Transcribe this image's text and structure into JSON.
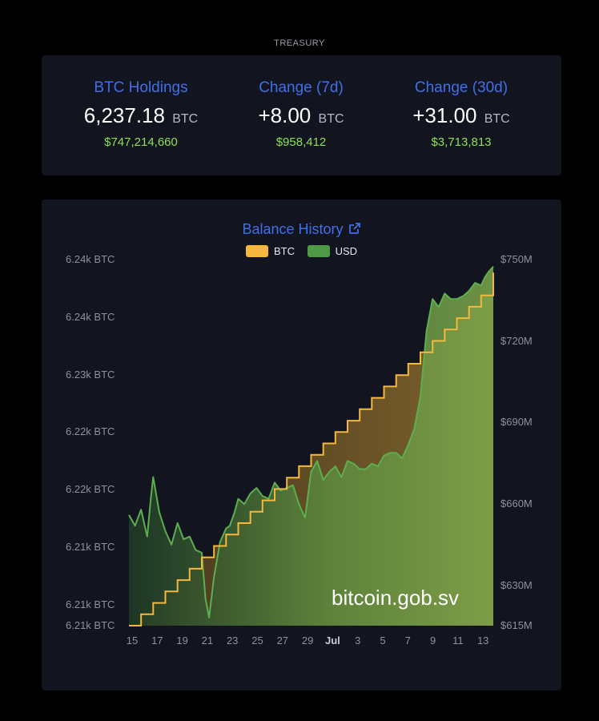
{
  "header": {
    "label": "TREASURY"
  },
  "stats": [
    {
      "title": "BTC Holdings",
      "value": "6,237.18",
      "unit": "BTC",
      "usd": "$747,214,660"
    },
    {
      "title": "Change (7d)",
      "value": "+8.00",
      "unit": "BTC",
      "usd": "$958,412"
    },
    {
      "title": "Change (30d)",
      "value": "+31.00",
      "unit": "BTC",
      "usd": "$3,713,813"
    }
  ],
  "colors": {
    "accent": "#3f6fe8",
    "usd_text": "#8be05a",
    "btc_series": "#f5b83d",
    "usd_series": "#4f9a45"
  },
  "chart_data": {
    "type": "area",
    "title": "Balance History",
    "legend": [
      "BTC",
      "USD"
    ],
    "legend_position": "top",
    "x_tick_labels": [
      "15",
      "17",
      "19",
      "21",
      "23",
      "25",
      "27",
      "29",
      "Jul",
      "3",
      "5",
      "7",
      "9",
      "11",
      "13"
    ],
    "y_left_tick_labels": [
      "6.24k BTC",
      "6.24k BTC",
      "6.23k BTC",
      "6.22k BTC",
      "6.22k BTC",
      "6.21k BTC",
      "6.21k BTC",
      "6.21k BTC"
    ],
    "y_right_tick_labels": [
      "$750M",
      "$720M",
      "$690M",
      "$660M",
      "$630M",
      "$615M"
    ],
    "x_range": [
      "Jun 15",
      "Jul 14"
    ],
    "y_left_range": [
      6206,
      6238
    ],
    "y_right_range": [
      615,
      750
    ],
    "series": [
      {
        "name": "BTC",
        "unit": "BTC",
        "step": true,
        "x": [
          0,
          1,
          2,
          3,
          4,
          5,
          6,
          7,
          8,
          9,
          10,
          11,
          12,
          13,
          14,
          15,
          16,
          17,
          18,
          19,
          20,
          21,
          22,
          23,
          24,
          25,
          26,
          27,
          28,
          29,
          30
        ],
        "values": [
          6206,
          6207,
          6208,
          6209,
          6210,
          6211,
          6212,
          6213,
          6214,
          6215,
          6216,
          6217,
          6218,
          6219,
          6220,
          6221,
          6222,
          6223,
          6224,
          6225,
          6226,
          6227,
          6228,
          6229,
          6230,
          6231,
          6232,
          6233,
          6234,
          6235,
          6237
        ]
      },
      {
        "name": "USD",
        "unit": "$M",
        "x": [
          0,
          0.5,
          1,
          1.5,
          1.8,
          2,
          2.5,
          3,
          3.5,
          4,
          4.5,
          5,
          5.5,
          6,
          6.3,
          6.6,
          7,
          7.5,
          8,
          8.3,
          8.7,
          9,
          9.5,
          10,
          10.5,
          11,
          11.5,
          12,
          12.5,
          13,
          13.5,
          14,
          14.5,
          15,
          15.5,
          16,
          16.5,
          17,
          17.5,
          18,
          18.5,
          19,
          19.5,
          20,
          20.5,
          21,
          21.5,
          22,
          22.5,
          23,
          23.5,
          24,
          24.5,
          25,
          25.5,
          26,
          26.5,
          27,
          27.5,
          28,
          28.5,
          29,
          29.3,
          29.6,
          30
        ],
        "values": [
          656,
          652,
          658,
          648,
          662,
          670,
          657,
          650,
          645,
          653,
          647,
          648,
          643,
          642,
          625,
          618,
          633,
          646,
          651,
          652,
          657,
          662,
          660,
          664,
          666,
          663,
          662,
          668,
          665,
          666,
          667,
          660,
          655,
          672,
          676,
          669,
          672,
          674,
          670,
          676,
          675,
          673,
          673,
          675,
          674,
          678,
          679,
          679,
          677,
          682,
          688,
          700,
          724,
          736,
          733,
          738,
          736,
          736,
          737,
          739,
          742,
          741,
          744,
          746,
          748
        ]
      }
    ]
  },
  "watermark": "bitcoin.gob.sv"
}
